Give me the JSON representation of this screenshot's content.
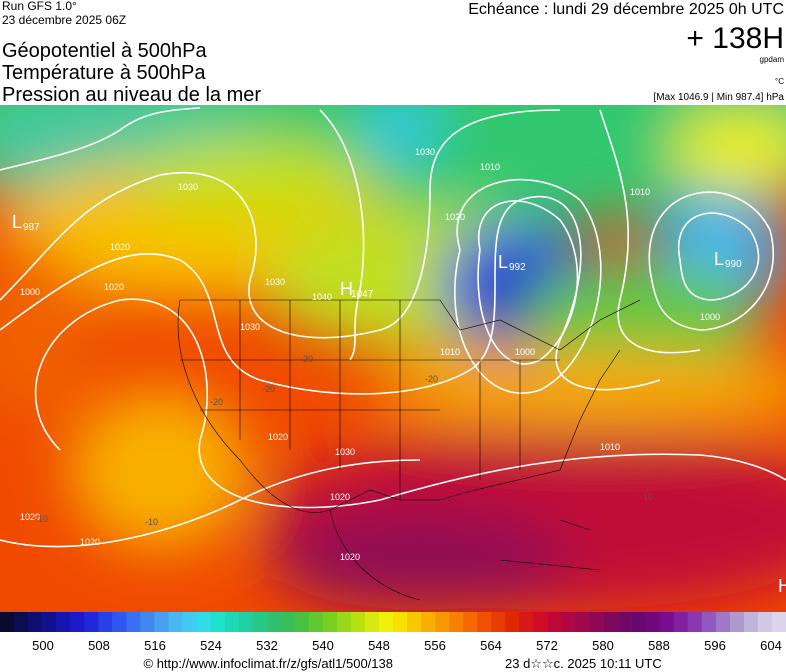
{
  "header": {
    "run": "Run GFS 1.0°",
    "date": "23 décembre 2025 06Z",
    "titles": [
      "Géopotentiel à 500hPa",
      "Température à 500hPa",
      "Pression au niveau de la mer"
    ],
    "echeance": "Echéance : lundi 29 décembre 2025 0h UTC",
    "lead": "+ 138H",
    "unit_geo": "gpdam",
    "unit_temp": "°C",
    "range": "[Max 1046.9 | Min 987.4] hPa"
  },
  "map": {
    "centers": [
      {
        "letter": "L",
        "value": "987"
      },
      {
        "letter": "L",
        "value": "992"
      },
      {
        "letter": "L",
        "value": "990"
      },
      {
        "letter": "H",
        "value": "1047"
      },
      {
        "letter": "H"
      }
    ],
    "isobar_labels": [
      "1020",
      "1000",
      "1020",
      "1030",
      "1040",
      "1030",
      "1030",
      "1020",
      "1020",
      "1030",
      "1020",
      "1020",
      "1010",
      "1030",
      "1020",
      "1010",
      "1010",
      "1000",
      "1000",
      "1020",
      "1010"
    ],
    "temperature_labels": [
      "-20",
      "-20",
      "-20",
      "-20",
      "-10",
      "-10",
      "-10"
    ]
  },
  "colorbar": {
    "ticks": [
      500,
      508,
      516,
      524,
      532,
      540,
      548,
      556,
      564,
      572,
      580,
      588,
      596,
      604
    ],
    "colors": [
      "#0a0a30",
      "#0c0c50",
      "#0e0e70",
      "#101090",
      "#1414b0",
      "#1a1ac8",
      "#2028dc",
      "#2840e8",
      "#3058f0",
      "#3870f0",
      "#4088f0",
      "#48a0f0",
      "#48b8f0",
      "#40ccf0",
      "#30dce8",
      "#20e0d0",
      "#20d8b8",
      "#20d0a0",
      "#28c888",
      "#30c070",
      "#38c058",
      "#48c040",
      "#60c830",
      "#78d020",
      "#98d818",
      "#b8e010",
      "#d8e810",
      "#f0f008",
      "#f8e000",
      "#f8c800",
      "#f8b000",
      "#f89800",
      "#f88000",
      "#f86800",
      "#f05000",
      "#e83c00",
      "#e02800",
      "#d81818",
      "#d00c28",
      "#c00838",
      "#b00844",
      "#a0084c",
      "#900854",
      "#80085c",
      "#700864",
      "#680870",
      "#70087c",
      "#780c8c",
      "#8020a0",
      "#8838b0",
      "#9058c0",
      "#a078c8",
      "#b098d0",
      "#c0b4dc",
      "#d0c8e4",
      "#dcd4ec"
    ]
  },
  "footer": {
    "url": "© http://www.infoclimat.fr/z/gfs/atl1/500/138",
    "time": "23 d☆☆c. 2025 10:11 UTC"
  }
}
